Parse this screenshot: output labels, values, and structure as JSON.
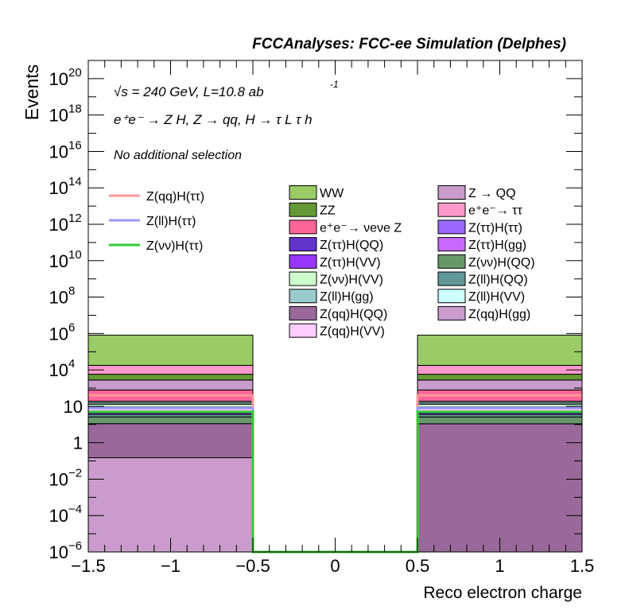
{
  "chart_data": {
    "type": "bar",
    "title": "FCCAnalyses: FCC-ee Simulation (Delphes)",
    "xlabel": "Reco electron charge",
    "ylabel": "Events",
    "xlim": [
      -1.5,
      1.5
    ],
    "ylim": [
      1e-06,
      1e+21
    ],
    "log_y": true,
    "x_ticks": [
      "−1.5",
      "−1",
      "−0.5",
      "0",
      "0.5",
      "1",
      "1.5"
    ],
    "y_tick_exponents": [
      -6,
      -4,
      -2,
      0,
      2,
      4,
      6,
      8,
      10,
      12,
      14,
      16,
      18,
      20
    ],
    "y_tick_special": {
      "0": "1",
      "2": "10"
    },
    "annotations": {
      "energy": "√s = 240 GeV, L=10.8 ab",
      "energy_sup": "-1",
      "process": "e⁺e⁻ → Z H, Z  → qq, H  → τ L τ h",
      "selection": "No additional selection"
    },
    "bins": [
      {
        "x": [
          -1.5,
          -0.5
        ]
      },
      {
        "x": [
          0.5,
          1.5
        ]
      }
    ],
    "stack": [
      {
        "name": "Z(qq)H(gg)",
        "color": "#c99ccb",
        "values": [
          0.15,
          0.0
        ]
      },
      {
        "name": "Z(qq)H(QQ)",
        "color": "#99699a",
        "values": [
          11.0,
          11.0
        ]
      },
      {
        "name": "Z(νν)H(QQ)",
        "color": "#689869",
        "values": [
          15.0,
          15.0
        ]
      },
      {
        "name": "Z(ll)H(QQ)",
        "color": "#619899",
        "values": [
          10.0,
          10.0
        ]
      },
      {
        "name": "Z(ττ)H(QQ)",
        "color": "#6134cc",
        "values": [
          8.0,
          8.0
        ]
      },
      {
        "name": "Z(ττ)H(VV)",
        "color": "#9a35fe",
        "values": [
          3.0,
          3.0
        ]
      },
      {
        "name": "Z(ττ)H(ττ)",
        "color": "#9a68fe",
        "values": [
          2.0,
          2.0
        ]
      },
      {
        "name": "Z(ττ)H(gg)",
        "color": "#c968fe",
        "values": [
          2.0,
          2.0
        ]
      },
      {
        "name": "Z(qq)H(VV)",
        "color": "#ffccff",
        "values": [
          40.0,
          40.0
        ]
      },
      {
        "name": "Z(νν)H(VV)",
        "color": "#cdfecd",
        "values": [
          40.0,
          40.0
        ]
      },
      {
        "name": "Z(ll)H(gg)",
        "color": "#9acacb",
        "values": [
          30.0,
          30.0
        ]
      },
      {
        "name": "Z(ll)H(VV)",
        "color": "#ccffff",
        "values": [
          30.0,
          30.0
        ]
      },
      {
        "name": "e⁺e⁻→ νeνe Z",
        "color": "#fe6599",
        "values": [
          600.0,
          600.0
        ]
      },
      {
        "name": "Z → QQ",
        "color": "#c99ccb",
        "values": [
          2000.0,
          2000.0
        ]
      },
      {
        "name": "ZZ",
        "color": "#659935",
        "values": [
          3000.0,
          3000.0
        ]
      },
      {
        "name": "e⁺e⁻→ ττ",
        "color": "#ff99cc",
        "values": [
          12000.0,
          12000.0
        ]
      },
      {
        "name": "WW",
        "color": "#9acb66",
        "values": [
          800000.0,
          800000.0
        ]
      }
    ],
    "signals": [
      {
        "name": "Z(qq)H(ττ)",
        "color": "#ff9999",
        "values": [
          400.0,
          400.0
        ]
      },
      {
        "name": "Z(ll)H(ττ)",
        "color": "#9999ff",
        "values": [
          80.0,
          80.0
        ]
      },
      {
        "name": "Z(νν)H(ττ)",
        "color": "#35cb35",
        "values": [
          50.0,
          50.0
        ]
      }
    ],
    "legend_signals": [
      "Z(qq)H(ττ)",
      "Z(ll)H(ττ)",
      "Z(νν)H(ττ)"
    ],
    "legend_backgrounds": [
      "WW",
      "Z → QQ",
      "ZZ",
      "e⁺e⁻→ ττ",
      "e⁺e⁻→ νeνe Z",
      "Z(ττ)H(ττ)",
      "Z(ττ)H(QQ)",
      "Z(ττ)H(gg)",
      "Z(ττ)H(VV)",
      "Z(νν)H(QQ)",
      "Z(νν)H(VV)",
      "Z(ll)H(QQ)",
      "Z(ll)H(gg)",
      "Z(ll)H(VV)",
      "Z(qq)H(QQ)",
      "Z(qq)H(gg)",
      "Z(qq)H(VV)"
    ]
  }
}
